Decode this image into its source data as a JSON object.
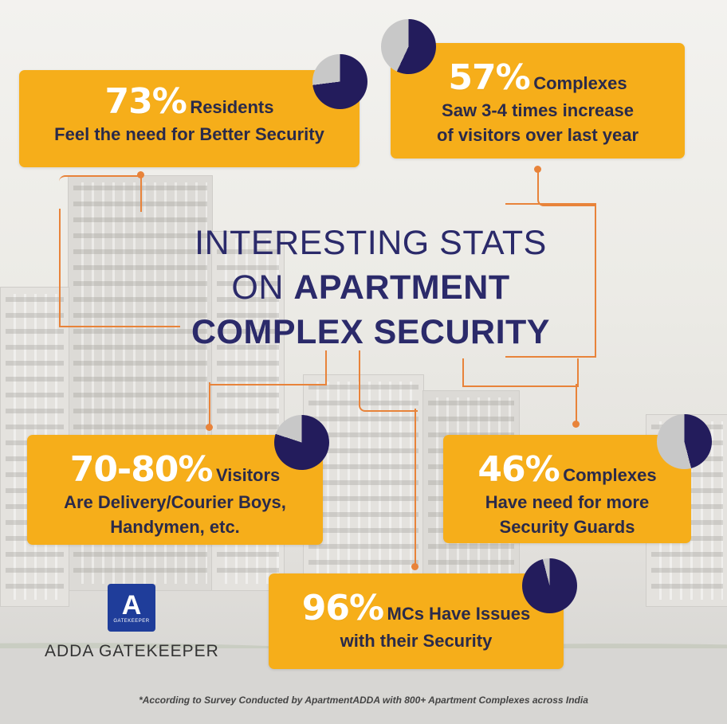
{
  "headline": {
    "line1": "INTERESTING STATS",
    "line2_prefix": "ON ",
    "line2_bold": "APARTMENT",
    "line3_bold": "COMPLEX SECURITY"
  },
  "stats": [
    {
      "value": "73%",
      "label": "Residents",
      "text_lines": [
        "Feel the need for Better Security"
      ],
      "pie_fraction": 0.73
    },
    {
      "value": "57%",
      "label": "Complexes",
      "text_lines": [
        "Saw 3-4 times increase",
        "of visitors over last year"
      ],
      "pie_fraction": 0.57
    },
    {
      "value": "70-80%",
      "label": "Visitors",
      "text_lines": [
        "Are Delivery/Courier Boys,",
        "Handymen, etc."
      ],
      "pie_fraction": 0.8
    },
    {
      "value": "46%",
      "label": "Complexes",
      "text_lines": [
        "Have need for more",
        "Security Guards"
      ],
      "pie_fraction": 0.46
    },
    {
      "value": "96%",
      "label": "MCs Have Issues",
      "text_lines": [
        "with their Security"
      ],
      "pie_fraction": 0.96
    }
  ],
  "brand": {
    "logo_letter": "A",
    "logo_caption": "GATEKEEPER",
    "name": "ADDA GATEKEEPER"
  },
  "footnote": "*According to Survey Conducted by ApartmentADDA with 800+ Apartment Complexes across India",
  "colors": {
    "card": "#f6ae1a",
    "pie_fill": "#231c5c",
    "pie_rest": "#c8c8c8",
    "connector": "#e8833a",
    "headline": "#2b2a6a"
  }
}
